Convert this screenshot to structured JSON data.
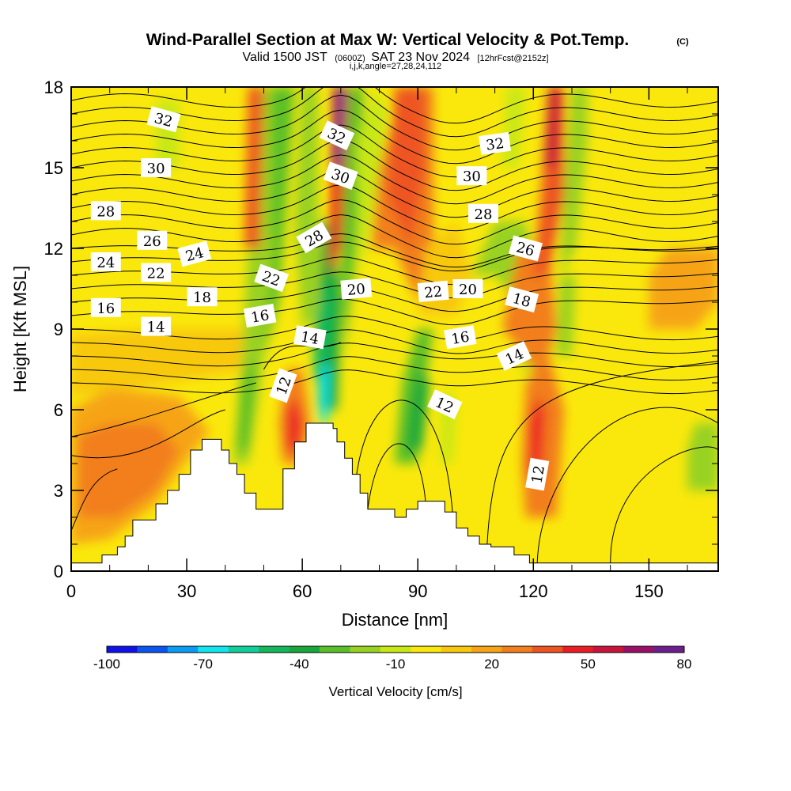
{
  "title": {
    "main": "Wind-Parallel Section at Max W: Vertical Velocity & Pot.Temp.",
    "copyright": "(C)",
    "valid_prefix": "Valid 1500 JST",
    "valid_utc": "(0600Z)",
    "valid_date": "SAT 23 Nov 2024",
    "forecast": "[12hrFcst@2152z]",
    "indices": "i,j,k,angle=27,28,24,112"
  },
  "chart_data": {
    "type": "heatmap",
    "xlabel": "Distance [nm]",
    "ylabel": "Height [Kft MSL]",
    "xlim": [
      0,
      168
    ],
    "ylim": [
      0,
      18
    ],
    "x_ticks": [
      "0",
      "30",
      "60",
      "90",
      "120",
      "150"
    ],
    "y_ticks": [
      "0",
      "3",
      "6",
      "9",
      "12",
      "15",
      "18"
    ],
    "colorbar": {
      "label": "Vertical Velocity [cm/s]",
      "tick_labels": [
        "-100",
        "-70",
        "-40",
        "-10",
        "20",
        "50",
        "80"
      ],
      "levels": [
        -100,
        -90,
        -80,
        -70,
        -60,
        -50,
        -40,
        -30,
        -20,
        -10,
        0,
        10,
        20,
        30,
        40,
        50,
        60,
        70,
        80
      ],
      "colors": [
        "#1010e8",
        "#0a55f0",
        "#0a9cf5",
        "#10e6f0",
        "#10d09a",
        "#14b85a",
        "#18a83a",
        "#5ac028",
        "#98d220",
        "#c8e814",
        "#fae80c",
        "#f8c80c",
        "#f6a414",
        "#f27e1c",
        "#ee5422",
        "#ec1c24",
        "#c8143a",
        "#9a1066",
        "#6c1e8e"
      ]
    },
    "theta_contour_labels": [
      "32",
      "32",
      "32",
      "30",
      "30",
      "30",
      "28",
      "28",
      "28",
      "26",
      "26",
      "24",
      "24",
      "22",
      "22",
      "22",
      "20",
      "20",
      "18",
      "18",
      "16",
      "16",
      "16",
      "14",
      "14",
      "14",
      "12",
      "12",
      "12"
    ],
    "terrain_nm_kft": [
      [
        0,
        0.3
      ],
      [
        8,
        0.3
      ],
      [
        8,
        0.6
      ],
      [
        12,
        0.6
      ],
      [
        12,
        0.9
      ],
      [
        14,
        0.9
      ],
      [
        14,
        1.3
      ],
      [
        16,
        1.3
      ],
      [
        16,
        1.9
      ],
      [
        22,
        1.9
      ],
      [
        22,
        2.5
      ],
      [
        25,
        2.5
      ],
      [
        25,
        3.0
      ],
      [
        28,
        3.0
      ],
      [
        28,
        3.6
      ],
      [
        31,
        3.6
      ],
      [
        31,
        4.5
      ],
      [
        34,
        4.5
      ],
      [
        34,
        4.9
      ],
      [
        39,
        4.9
      ],
      [
        39,
        4.5
      ],
      [
        41,
        4.5
      ],
      [
        41,
        4.0
      ],
      [
        43,
        4.0
      ],
      [
        43,
        3.6
      ],
      [
        45,
        3.6
      ],
      [
        45,
        2.9
      ],
      [
        48,
        2.9
      ],
      [
        48,
        2.3
      ],
      [
        55,
        2.3
      ],
      [
        55,
        3.8
      ],
      [
        58,
        3.8
      ],
      [
        58,
        4.8
      ],
      [
        61,
        4.8
      ],
      [
        61,
        5.5
      ],
      [
        68,
        5.5
      ],
      [
        68,
        5.3
      ],
      [
        69,
        5.3
      ],
      [
        69,
        4.8
      ],
      [
        71,
        4.8
      ],
      [
        71,
        4.2
      ],
      [
        73,
        4.2
      ],
      [
        73,
        3.6
      ],
      [
        75,
        3.6
      ],
      [
        75,
        2.9
      ],
      [
        77,
        2.9
      ],
      [
        77,
        2.3
      ],
      [
        84,
        2.3
      ],
      [
        84,
        2.0
      ],
      [
        87,
        2.0
      ],
      [
        87,
        2.3
      ],
      [
        90,
        2.3
      ],
      [
        90,
        2.6
      ],
      [
        97,
        2.6
      ],
      [
        97,
        2.2
      ],
      [
        100,
        2.2
      ],
      [
        100,
        1.6
      ],
      [
        103,
        1.6
      ],
      [
        103,
        1.3
      ],
      [
        106,
        1.3
      ],
      [
        106,
        1.0
      ],
      [
        109,
        1.0
      ],
      [
        109,
        0.9
      ],
      [
        115,
        0.9
      ],
      [
        115,
        0.6
      ],
      [
        119,
        0.6
      ],
      [
        119,
        0.3
      ],
      [
        168,
        0.3
      ]
    ]
  }
}
